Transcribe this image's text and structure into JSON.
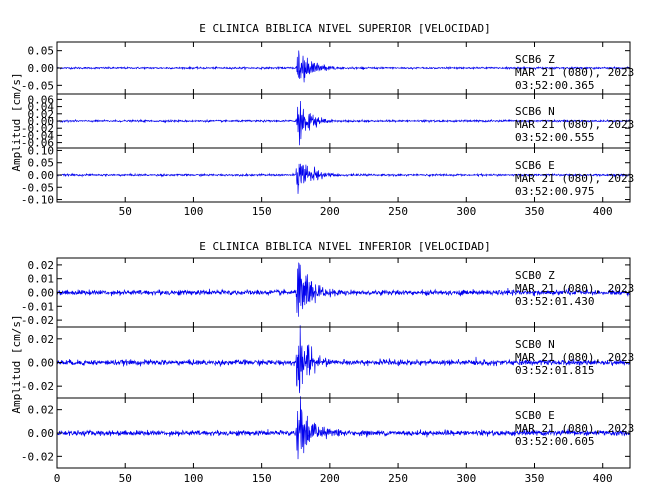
{
  "chart_data": [
    {
      "type": "line",
      "title": "E CLINICA BIBLICA NIVEL SUPERIOR [VELOCIDAD]",
      "ylabel": "Amplitud [cm/s]",
      "xlim": [
        0,
        420
      ],
      "x_ticks": [
        "50",
        "100",
        "150",
        "200",
        "250",
        "300",
        "350",
        "400"
      ],
      "x_tick_values": [
        50,
        100,
        150,
        200,
        250,
        300,
        350,
        400
      ],
      "trace_color": "#0000ee",
      "panels": [
        {
          "station": "SCB6",
          "component": "Z",
          "date": "MAR 21 (080), 2023",
          "time": "03:52:00.365",
          "ylim": [
            -0.075,
            0.075
          ],
          "y_ticks": [
            {
              "v": 0.05,
              "label": "0.05"
            },
            {
              "v": 0.0,
              "label": "0.00"
            },
            {
              "v": -0.05,
              "label": "-0.05"
            }
          ],
          "noise": 0.0012,
          "peak": 0.06,
          "onset": 175
        },
        {
          "station": "SCB6",
          "component": "N",
          "date": "MAR 21 (080), 2023",
          "time": "03:52:00.555",
          "ylim": [
            -0.075,
            0.075
          ],
          "y_ticks": [
            {
              "v": 0.06,
              "label": "0.06"
            },
            {
              "v": 0.04,
              "label": "0.04"
            },
            {
              "v": 0.02,
              "label": "0.02"
            },
            {
              "v": 0.0,
              "label": "0.00"
            },
            {
              "v": -0.02,
              "label": "-0.02"
            },
            {
              "v": -0.04,
              "label": "-0.04"
            },
            {
              "v": -0.06,
              "label": "-0.06"
            }
          ],
          "noise": 0.0012,
          "peak": 0.055,
          "onset": 175
        },
        {
          "station": "SCB6",
          "component": "E",
          "date": "MAR 21 (080), 2023",
          "time": "03:52:00.975",
          "ylim": [
            -0.11,
            0.11
          ],
          "y_ticks": [
            {
              "v": 0.1,
              "label": "0.10"
            },
            {
              "v": 0.05,
              "label": "0.05"
            },
            {
              "v": 0.0,
              "label": "0.00"
            },
            {
              "v": -0.05,
              "label": "-0.05"
            },
            {
              "v": -0.1,
              "label": "-0.10"
            }
          ],
          "noise": 0.0018,
          "peak": 0.09,
          "onset": 175
        }
      ]
    },
    {
      "type": "line",
      "title": "E CLINICA BIBLICA NIVEL INFERIOR [VELOCIDAD]",
      "ylabel": "Amplitud [cm/s]",
      "xlim": [
        0,
        420
      ],
      "x_ticks": [
        "0",
        "50",
        "100",
        "150",
        "200",
        "250",
        "300",
        "350",
        "400"
      ],
      "x_tick_values": [
        0,
        50,
        100,
        150,
        200,
        250,
        300,
        350,
        400
      ],
      "trace_color": "#0000ee",
      "panels": [
        {
          "station": "SCB0",
          "component": "Z",
          "date": "MAR 21 (080), 2023",
          "time": "03:52:01.430",
          "ylim": [
            -0.025,
            0.025
          ],
          "y_ticks": [
            {
              "v": 0.02,
              "label": "0.02"
            },
            {
              "v": 0.01,
              "label": "0.01"
            },
            {
              "v": 0.0,
              "label": "0.00"
            },
            {
              "v": -0.01,
              "label": "-0.01"
            },
            {
              "v": -0.02,
              "label": "-0.02"
            }
          ],
          "noise": 0.0009,
          "peak": 0.022,
          "onset": 175
        },
        {
          "station": "SCB0",
          "component": "N",
          "date": "MAR 21 (080), 2023",
          "time": "03:52:01.815",
          "ylim": [
            -0.03,
            0.03
          ],
          "y_ticks": [
            {
              "v": 0.02,
              "label": "0.02"
            },
            {
              "v": 0.0,
              "label": "0.00"
            },
            {
              "v": -0.02,
              "label": "-0.02"
            }
          ],
          "noise": 0.0011,
          "peak": 0.027,
          "onset": 175
        },
        {
          "station": "SCB0",
          "component": "E",
          "date": "MAR 21 (080), 2023",
          "time": "03:52:00.605",
          "ylim": [
            -0.03,
            0.03
          ],
          "y_ticks": [
            {
              "v": 0.02,
              "label": "0.02"
            },
            {
              "v": 0.0,
              "label": "0.00"
            },
            {
              "v": -0.02,
              "label": "-0.02"
            }
          ],
          "noise": 0.0011,
          "peak": 0.027,
          "onset": 175
        }
      ]
    }
  ]
}
